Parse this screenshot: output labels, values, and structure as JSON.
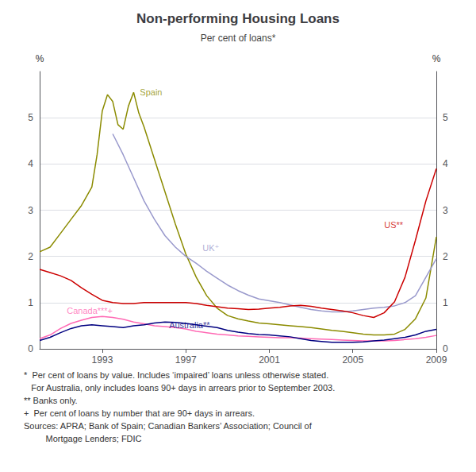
{
  "chart_data": {
    "type": "line",
    "title": "Non-performing Housing Loans",
    "subtitle": "Per cent of loans*",
    "ylabel_left": "%",
    "ylabel_right": "%",
    "xlim": [
      1990,
      2009
    ],
    "xticks": [
      1993,
      1997,
      2001,
      2005,
      2009
    ],
    "ylim": [
      0,
      6.0
    ],
    "yticks": [
      0,
      1,
      2,
      3,
      4,
      5
    ],
    "y2lim": [
      0,
      6.0
    ],
    "y2ticks": [
      0,
      1,
      2,
      3,
      4,
      5
    ],
    "grid": true,
    "footnotes": [
      "*  Per cent of loans by value. Includes ‘impaired’ loans unless otherwise stated.",
      "   For Australia, only includes loans 90+ days in arrears prior to September 2003.",
      "** Banks only.",
      "+  Per cent of loans by number that are 90+ days in arrears.",
      "Sources: APRA; Bank of Spain; Canadian Bankers’ Association; Council of",
      "         Mortgage Lenders; FDIC"
    ],
    "annotations": [
      {
        "text": "Spain",
        "x": 1994.8,
        "y": 5.55,
        "color": "#8B8B00"
      },
      {
        "text": "UK⁺",
        "x": 1997.8,
        "y": 2.18,
        "color": "#9999cc"
      },
      {
        "text": "US**",
        "x": 2006.5,
        "y": 2.68,
        "color": "#cc0000"
      },
      {
        "text": "Canada***+",
        "x": 1991.3,
        "y": 0.82,
        "color": "#ff69b4"
      },
      {
        "text": "Australia**",
        "x": 1996.2,
        "y": 0.52,
        "color": "#000080"
      }
    ],
    "series": [
      {
        "name": "Spain",
        "color": "#8B8B00",
        "x": [
          1990.0,
          1990.5,
          1991.0,
          1991.5,
          1992.0,
          1992.5,
          1992.75,
          1993.0,
          1993.25,
          1993.5,
          1993.75,
          1994.0,
          1994.25,
          1994.5,
          1994.75,
          1995.0,
          1995.5,
          1996.0,
          1996.5,
          1997.0,
          1997.5,
          1998.0,
          1998.5,
          1999.0,
          1999.5,
          2000.0,
          2000.5,
          2001.0,
          2001.5,
          2002.0,
          2002.5,
          2003.0,
          2003.5,
          2004.0,
          2004.5,
          2005.0,
          2005.5,
          2006.0,
          2006.5,
          2007.0,
          2007.5,
          2008.0,
          2008.5,
          2009.0
        ],
        "values": [
          2.1,
          2.2,
          2.5,
          2.8,
          3.1,
          3.5,
          4.2,
          5.15,
          5.5,
          5.35,
          4.85,
          4.75,
          5.25,
          5.55,
          5.1,
          4.8,
          4.1,
          3.4,
          2.7,
          2.05,
          1.55,
          1.15,
          0.88,
          0.72,
          0.65,
          0.6,
          0.56,
          0.54,
          0.52,
          0.5,
          0.48,
          0.46,
          0.43,
          0.4,
          0.38,
          0.35,
          0.32,
          0.3,
          0.3,
          0.32,
          0.42,
          0.65,
          1.1,
          2.42
        ]
      },
      {
        "name": "UK⁺",
        "color": "#9999cc",
        "x": [
          1993.5,
          1994.0,
          1994.5,
          1995.0,
          1995.5,
          1996.0,
          1996.5,
          1997.0,
          1997.5,
          1998.0,
          1998.5,
          1999.0,
          1999.5,
          2000.0,
          2000.5,
          2001.0,
          2001.5,
          2002.0,
          2002.5,
          2003.0,
          2003.5,
          2004.0,
          2004.5,
          2005.0,
          2005.5,
          2006.0,
          2006.5,
          2007.0,
          2007.5,
          2008.0,
          2008.5,
          2009.0
        ],
        "values": [
          4.65,
          4.2,
          3.7,
          3.2,
          2.8,
          2.45,
          2.2,
          2.0,
          1.85,
          1.68,
          1.53,
          1.38,
          1.26,
          1.16,
          1.08,
          1.04,
          1.0,
          0.95,
          0.9,
          0.85,
          0.82,
          0.8,
          0.8,
          0.82,
          0.85,
          0.88,
          0.9,
          0.93,
          1.0,
          1.15,
          1.55,
          1.95
        ]
      },
      {
        "name": "US**",
        "color": "#cc0000",
        "x": [
          1990.0,
          1990.5,
          1991.0,
          1991.5,
          1992.0,
          1992.5,
          1993.0,
          1993.5,
          1994.0,
          1994.5,
          1995.0,
          1995.5,
          1996.0,
          1996.5,
          1997.0,
          1997.5,
          1998.0,
          1998.5,
          1999.0,
          1999.5,
          2000.0,
          2000.5,
          2001.0,
          2001.5,
          2002.0,
          2002.5,
          2003.0,
          2003.5,
          2004.0,
          2004.5,
          2005.0,
          2005.5,
          2006.0,
          2006.5,
          2007.0,
          2007.5,
          2008.0,
          2008.5,
          2009.0
        ],
        "values": [
          1.72,
          1.65,
          1.58,
          1.48,
          1.32,
          1.18,
          1.05,
          1.0,
          0.98,
          0.98,
          1.0,
          1.0,
          1.0,
          1.0,
          1.0,
          0.98,
          0.94,
          0.91,
          0.88,
          0.87,
          0.85,
          0.86,
          0.88,
          0.9,
          0.93,
          0.94,
          0.92,
          0.88,
          0.85,
          0.82,
          0.78,
          0.72,
          0.68,
          0.78,
          1.02,
          1.55,
          2.35,
          3.2,
          3.9
        ]
      },
      {
        "name": "Canada***+",
        "color": "#ff69b4",
        "x": [
          1990.0,
          1990.5,
          1991.0,
          1991.5,
          1992.0,
          1992.5,
          1993.0,
          1993.5,
          1994.0,
          1994.5,
          1995.0,
          1995.5,
          1996.0,
          1996.5,
          1997.0,
          1997.5,
          1998.0,
          1998.5,
          1999.0,
          1999.5,
          2000.0,
          2000.5,
          2001.0,
          2001.5,
          2002.0,
          2002.5,
          2003.0,
          2003.5,
          2004.0,
          2004.5,
          2005.0,
          2005.5,
          2006.0,
          2006.5,
          2007.0,
          2007.5,
          2008.0,
          2008.5,
          2009.0
        ],
        "values": [
          0.22,
          0.3,
          0.44,
          0.55,
          0.62,
          0.68,
          0.7,
          0.68,
          0.64,
          0.58,
          0.54,
          0.5,
          0.48,
          0.46,
          0.43,
          0.38,
          0.35,
          0.32,
          0.3,
          0.28,
          0.27,
          0.26,
          0.25,
          0.24,
          0.24,
          0.23,
          0.22,
          0.21,
          0.2,
          0.19,
          0.18,
          0.17,
          0.17,
          0.17,
          0.18,
          0.2,
          0.22,
          0.25,
          0.29
        ]
      },
      {
        "name": "Australia**",
        "color": "#000080",
        "x": [
          1990.0,
          1990.5,
          1991.0,
          1991.5,
          1992.0,
          1992.5,
          1993.0,
          1993.5,
          1994.0,
          1994.5,
          1995.0,
          1995.5,
          1996.0,
          1996.5,
          1997.0,
          1997.5,
          1998.0,
          1998.5,
          1999.0,
          1999.5,
          2000.0,
          2000.5,
          2001.0,
          2001.5,
          2002.0,
          2002.5,
          2003.0,
          2003.5,
          2004.0,
          2004.5,
          2005.0,
          2005.5,
          2006.0,
          2006.5,
          2007.0,
          2007.5,
          2008.0,
          2008.5,
          2009.0
        ],
        "values": [
          0.18,
          0.25,
          0.35,
          0.44,
          0.5,
          0.52,
          0.5,
          0.48,
          0.46,
          0.5,
          0.52,
          0.56,
          0.58,
          0.57,
          0.55,
          0.52,
          0.49,
          0.46,
          0.4,
          0.36,
          0.33,
          0.31,
          0.3,
          0.28,
          0.26,
          0.22,
          0.18,
          0.16,
          0.14,
          0.14,
          0.14,
          0.15,
          0.17,
          0.19,
          0.22,
          0.25,
          0.3,
          0.38,
          0.42
        ]
      }
    ]
  }
}
